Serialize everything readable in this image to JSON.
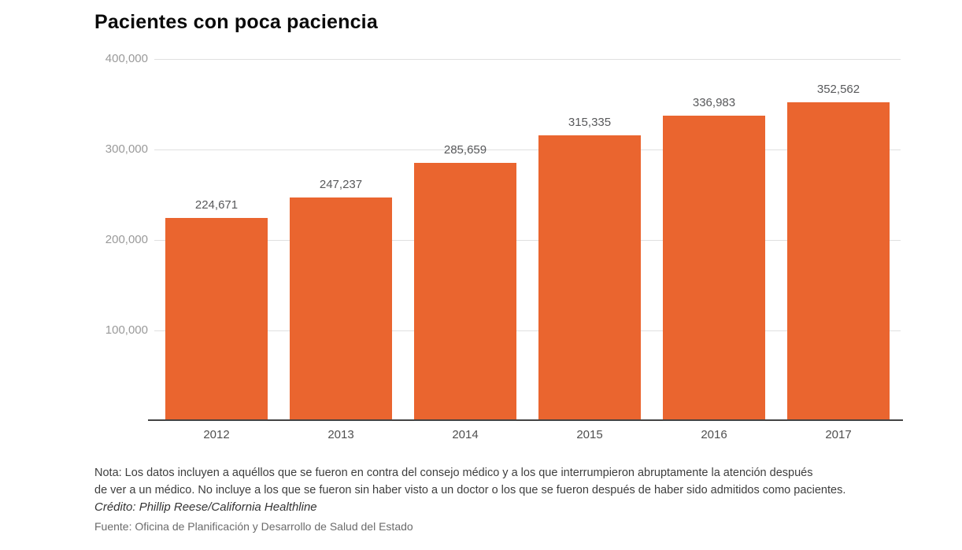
{
  "chart": {
    "title": "Pacientes con poca paciencia"
  },
  "chart_data": {
    "type": "bar",
    "title": "Pacientes con poca paciencia",
    "categories": [
      "2012",
      "2013",
      "2014",
      "2015",
      "2016",
      "2017"
    ],
    "values": [
      224671,
      247237,
      285659,
      315335,
      336983,
      352562
    ],
    "value_labels": [
      "224,671",
      "247,237",
      "285,659",
      "315,335",
      "336,983",
      "352,562"
    ],
    "xlabel": "",
    "ylabel": "",
    "ylim": [
      0,
      400000
    ],
    "yticks": [
      100000,
      200000,
      300000,
      400000
    ],
    "ytick_labels": [
      "100,000",
      "200,000",
      "300,000",
      "400,000"
    ],
    "grid": true,
    "legend": false
  },
  "footer": {
    "note_line1": "Nota: Los datos incluyen a aquéllos que se fueron en contra del consejo médico y a los que interrumpieron abruptamente la atención después",
    "note_line2": "de ver a un médico. No incluye a los que se fueron sin haber visto a un doctor o los que se fueron después de haber sido admitidos como pacientes.",
    "credit": "Crédito: Phillip Reese/California Healthline",
    "source": "Fuente: Oficina de Planificación y Desarrollo de Salud del Estado"
  },
  "colors": {
    "bar": "#EA652F",
    "grid": "#E0E0E0",
    "axis": "#434343",
    "ytick_text": "#9A9A9A",
    "xtick_text": "#4F4F4F",
    "value_text": "#58595B",
    "title_text": "#0A0A0A"
  }
}
